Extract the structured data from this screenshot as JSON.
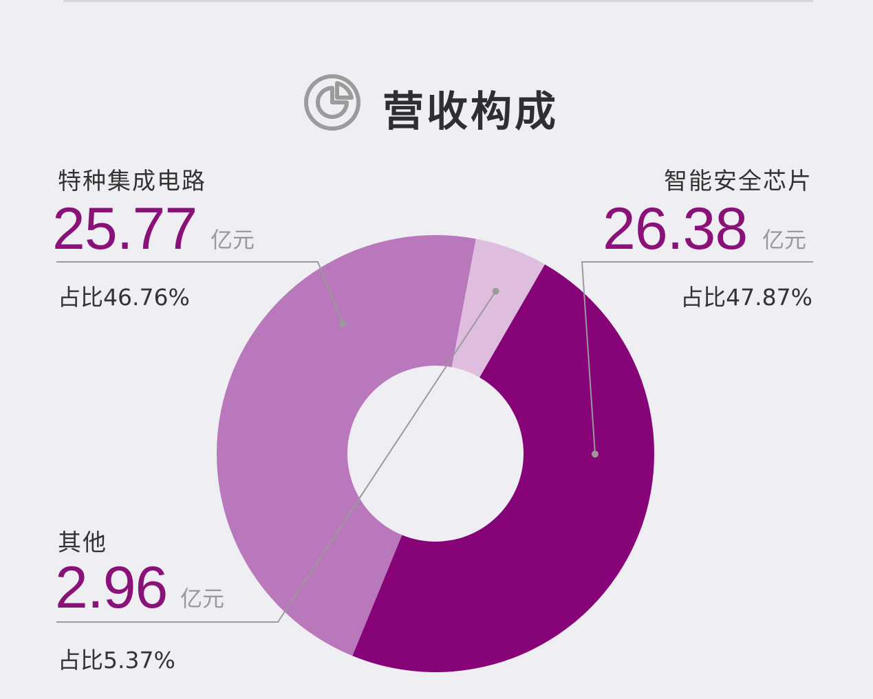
{
  "title": "营收构成",
  "colors": {
    "background": "#efeef2",
    "dark": "#860477",
    "medium": "#b978bc",
    "light": "#dfbddf",
    "value_text": "#8a1178",
    "leader": "#9a9a9a",
    "icon": "#9b9b9b"
  },
  "icon": "pie-chart-icon",
  "labels": {
    "s1": {
      "name": "智能安全芯片",
      "value": "26.38",
      "unit": "亿元",
      "share": "占比47.87%"
    },
    "s2": {
      "name": "特种集成电路",
      "value": "25.77",
      "unit": "亿元",
      "share": "占比46.76%"
    },
    "s3": {
      "name": "其他",
      "value": "2.96",
      "unit": "亿元",
      "share": "占比5.37%"
    }
  },
  "chart_data": {
    "type": "pie",
    "title": "营收构成",
    "unit": "亿元",
    "categories": [
      "智能安全芯片",
      "特种集成电路",
      "其他"
    ],
    "values": [
      26.38,
      25.77,
      2.96
    ],
    "shares": [
      47.87,
      46.76,
      5.37
    ],
    "colors": [
      "#860477",
      "#b978bc",
      "#dfbddf"
    ],
    "legend": "none",
    "donut": true
  }
}
